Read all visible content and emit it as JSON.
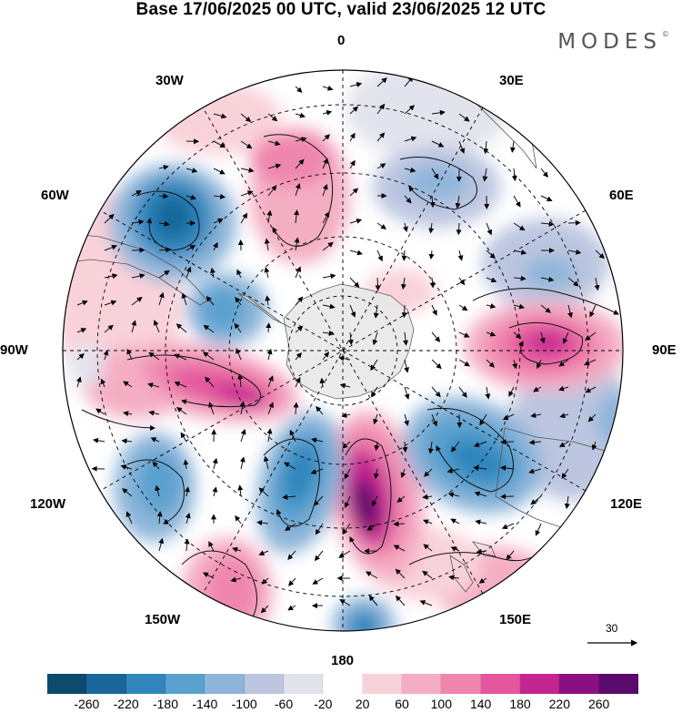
{
  "title": "Base 17/06/2025 00 UTC, valid 23/06/2025 12 UTC",
  "logo": {
    "text": "MODES",
    "mark": "©"
  },
  "longitude_labels": {
    "lon_0": "0",
    "lon_30e": "30E",
    "lon_60e": "60E",
    "lon_90e": "90E",
    "lon_120e": "120E",
    "lon_150e": "150E",
    "lon_180": "180",
    "lon_150w": "150W",
    "lon_120w": "120W",
    "lon_90w": "90W",
    "lon_60w": "60W",
    "lon_30w": "30W"
  },
  "reference_vector": {
    "value": "30"
  },
  "colorbar": {
    "colors": [
      "#0d4a6e",
      "#19679a",
      "#2f86bd",
      "#5aa1cf",
      "#8db5d9",
      "#bcc6e0",
      "#e3e3ee",
      "#ffffff",
      "#f9d2d9",
      "#f4aec4",
      "#ef86ae",
      "#e4569d",
      "#c42591",
      "#8a0f82",
      "#5a0a6b"
    ],
    "tick_labels": [
      "-260",
      "-220",
      "-180",
      "-140",
      "-100",
      "-60",
      "-20",
      "20",
      "60",
      "100",
      "140",
      "180",
      "220",
      "260"
    ]
  },
  "map": {
    "projection": "south-polar-stereographic",
    "field": "geopotential-height-anomaly",
    "continents": [
      "Antarctica",
      "Australia",
      "South America",
      "Africa",
      "New Zealand"
    ]
  }
}
